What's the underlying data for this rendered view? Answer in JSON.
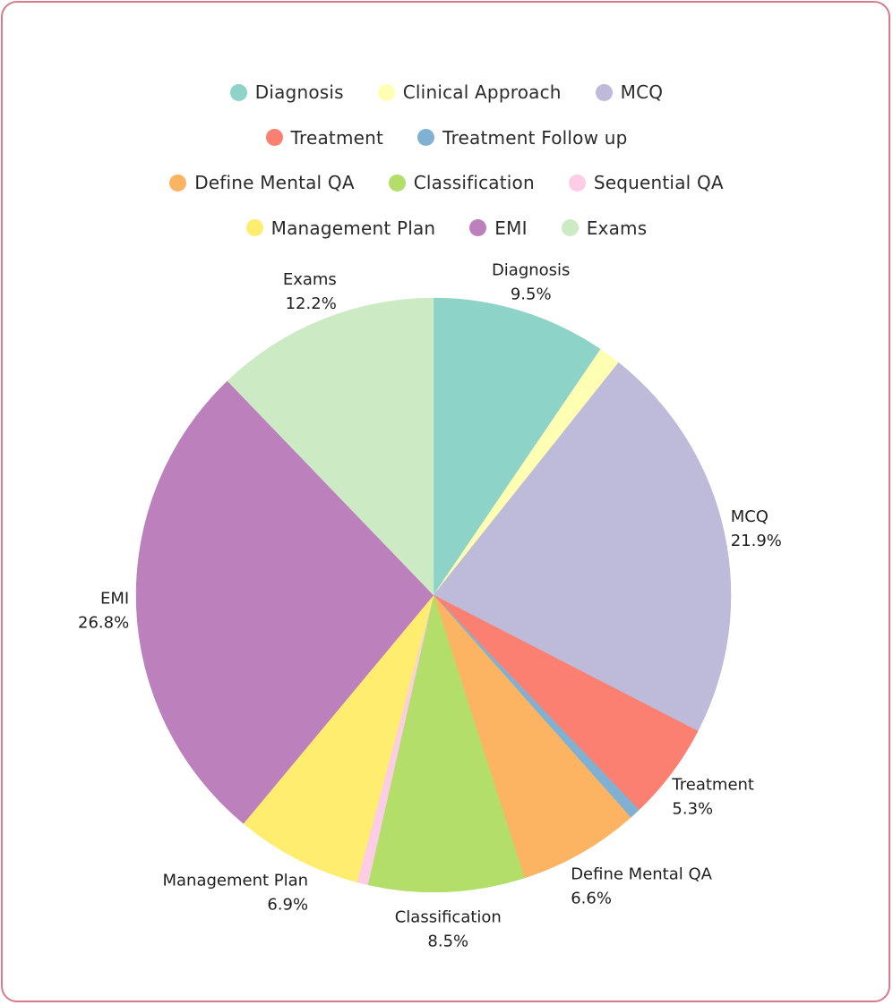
{
  "chart_data": {
    "type": "pie",
    "title": "",
    "legend_position": "top",
    "start_angle_deg": 0,
    "direction": "clockwise",
    "slices": [
      {
        "name": "Diagnosis",
        "value": 9.5,
        "label": "9.5%",
        "color": "#8dd3c7",
        "show_label": true
      },
      {
        "name": "Clinical Approach",
        "value": 1.2,
        "label": "",
        "color": "#ffffb3",
        "show_label": false
      },
      {
        "name": "MCQ",
        "value": 21.9,
        "label": "21.9%",
        "color": "#bebada",
        "show_label": true
      },
      {
        "name": "Treatment",
        "value": 5.3,
        "label": "5.3%",
        "color": "#fb8072",
        "show_label": true
      },
      {
        "name": "Treatment Follow up",
        "value": 0.6,
        "label": "",
        "color": "#80b1d3",
        "show_label": false
      },
      {
        "name": "Define Mental QA",
        "value": 6.6,
        "label": "6.6%",
        "color": "#fdb462",
        "show_label": true
      },
      {
        "name": "Classification",
        "value": 8.5,
        "label": "8.5%",
        "color": "#b3de69",
        "show_label": true
      },
      {
        "name": "Sequential QA",
        "value": 0.6,
        "label": "",
        "color": "#fccde5",
        "show_label": false
      },
      {
        "name": "Management Plan",
        "value": 6.9,
        "label": "6.9%",
        "color": "#ffed6f",
        "show_label": true
      },
      {
        "name": "EMI",
        "value": 26.8,
        "label": "26.8%",
        "color": "#bc80bd",
        "show_label": true
      },
      {
        "name": "Exams",
        "value": 12.2,
        "label": "12.2%",
        "color": "#ccebc5",
        "show_label": true
      }
    ],
    "legend_rows": [
      [
        "Diagnosis",
        "Clinical Approach",
        "MCQ"
      ],
      [
        "Treatment",
        "Treatment Follow up"
      ],
      [
        "Define Mental QA",
        "Classification",
        "Sequential QA"
      ],
      [
        "Management Plan",
        "EMI",
        "Exams"
      ]
    ]
  },
  "colors": {
    "border": "#d77b8c",
    "background": "#ffffff",
    "text": "#1f1f1f"
  }
}
